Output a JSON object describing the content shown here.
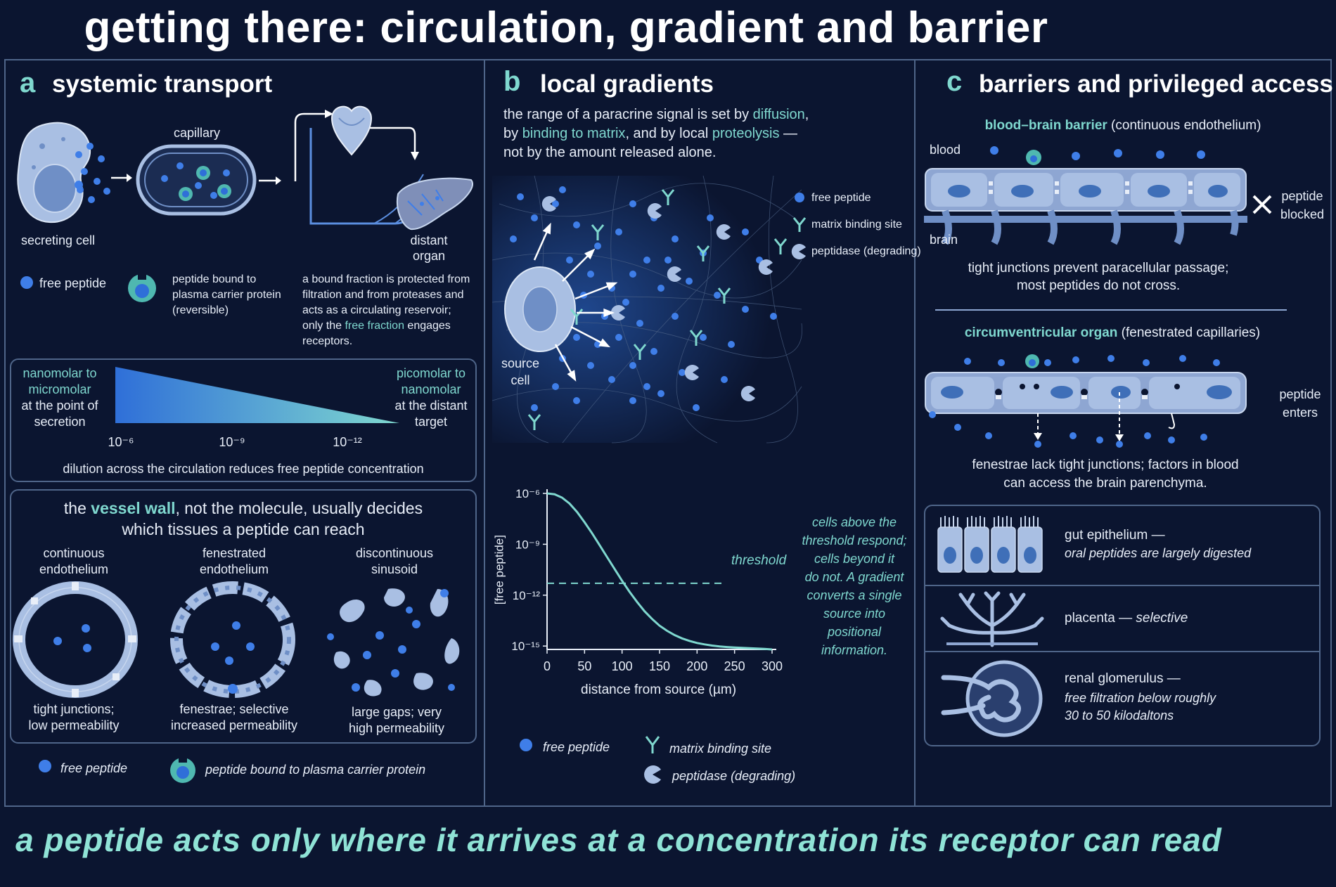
{
  "title": "getting there: circulation, gradient and barrier",
  "footer": "a peptide acts only where it arrives at a concentration its receptor can read",
  "colors": {
    "background": "#0b1530",
    "accent_teal": "#7fd8cf",
    "peptide_blue": "#3f7ee8",
    "cell_fill": "#a9bfe3",
    "panel_border": "#4f6589"
  },
  "panel_a": {
    "letter": "a",
    "heading": "systemic transport",
    "capillary_label": "capillary",
    "secreting_cell_label": "secreting cell",
    "distant_organ_label_1": "distant",
    "distant_organ_label_2": "organ",
    "legend_free_peptide": "free peptide",
    "legend_bound_1": "peptide bound to",
    "legend_bound_2": "plasma carrier protein",
    "legend_bound_3": "(reversible)",
    "bound_note_1": "a bound fraction is protected from",
    "bound_note_2": "filtration and from proteases and",
    "bound_note_3": "acts as a circulating reservoir;",
    "bound_note_4a": "only the ",
    "bound_note_4b": "free fraction",
    "bound_note_4c": " engages",
    "bound_note_5": "receptors.",
    "dilution": {
      "left_1": "nanomolar to",
      "left_2": "micromolar",
      "left_3": "at the point of",
      "left_4": "secretion",
      "right_1": "picomolar to",
      "right_2": "nanomolar",
      "right_3": "at the distant",
      "right_4": "target",
      "tick_1": "10⁻⁶",
      "tick_2": "10⁻⁹",
      "tick_3": "10⁻¹²",
      "caption": "dilution across the circulation reduces free peptide concentration"
    },
    "vessel": {
      "heading_1a": "the ",
      "heading_1b": "vessel wall",
      "heading_1c": ", not the molecule, usually decides",
      "heading_2": "which tissues a peptide can reach",
      "types": [
        {
          "name_1": "continuous",
          "name_2": "endothelium",
          "desc_1": "tight junctions;",
          "desc_2": "low permeability"
        },
        {
          "name_1": "fenestrated",
          "name_2": "endothelium",
          "desc_1": "fenestrae;  selective",
          "desc_2": "increased permeability"
        },
        {
          "name_1": "discontinuous",
          "name_2": "sinusoid",
          "desc_1": "large gaps; very",
          "desc_2": "high permeability"
        }
      ]
    },
    "bottom_legend_free": "free peptide",
    "bottom_legend_bound": "peptide bound to plasma carrier protein"
  },
  "panel_b": {
    "letter": "b",
    "heading": "local gradients",
    "intro_1a": "the range of a paracrine signal is set by ",
    "intro_1b": "diffusion",
    "intro_1c": ",",
    "intro_2a": "by ",
    "intro_2b": "binding to matrix",
    "intro_2c": ", and by local ",
    "intro_2d": "proteolysis",
    "intro_2e": " —",
    "intro_3": "not by the amount released alone.",
    "source_cell_1": "source",
    "source_cell_2": "cell",
    "legend_free": "free peptide",
    "legend_matrix": "matrix binding site",
    "legend_peptidase": "peptidase (degrading)",
    "threshold_label": "threshold",
    "note": [
      "cells above the",
      "threshold respond;",
      "cells beyond it",
      "do not. A gradient",
      "converts a single",
      "source into",
      "positional",
      "information."
    ],
    "bottom_legend_free": "free peptide",
    "bottom_legend_matrix": "matrix binding site",
    "bottom_legend_peptidase": "peptidase (degrading)"
  },
  "chart_data": {
    "type": "line",
    "xlabel": "distance from source (µm)",
    "ylabel": "[free peptide]",
    "x_ticks": [
      "0",
      "50",
      "100",
      "150",
      "200",
      "250",
      "300"
    ],
    "y_ticks": [
      "10⁻⁶",
      "10⁻⁹",
      "10⁻¹²",
      "10⁻¹⁵"
    ],
    "xlim": [
      0,
      300
    ],
    "ylim_log10": [
      -15.2,
      -6
    ],
    "y_scale": "log",
    "threshold_log10": -11.3,
    "series": [
      {
        "x": [
          0,
          10,
          20,
          30,
          40,
          50,
          60,
          70,
          80,
          90,
          100,
          110,
          120,
          130,
          140,
          150,
          160,
          170,
          180,
          190,
          200,
          210,
          220,
          230,
          240,
          250,
          260,
          270,
          280,
          290,
          300
        ],
        "y_log10": [
          -6.0,
          -6.05,
          -6.25,
          -6.6,
          -7.1,
          -7.7,
          -8.35,
          -9.05,
          -9.75,
          -10.45,
          -11.15,
          -11.8,
          -12.4,
          -12.95,
          -13.4,
          -13.8,
          -14.1,
          -14.35,
          -14.55,
          -14.7,
          -14.82,
          -14.9,
          -14.97,
          -15.02,
          -15.06,
          -15.09,
          -15.11,
          -15.13,
          -15.15,
          -15.17,
          -15.2
        ]
      }
    ],
    "grid": false
  },
  "panel_c": {
    "letter": "c",
    "heading": "barriers and privileged access",
    "bbb_title": "blood–brain barrier",
    "bbb_sub": " (continuous endothelium)",
    "blood_label": "blood",
    "brain_label": "brain",
    "blocked_1": "peptide",
    "blocked_2": "blocked",
    "bbb_note_1": "tight junctions prevent paracellular passage;",
    "bbb_note_2": "most peptides do not cross.",
    "cvo_title": "circumventricular organ",
    "cvo_sub": " (fenestrated capillaries)",
    "enters_1": "peptide",
    "enters_2": "enters",
    "cvo_note_1": "fenestrae lack tight junctions; factors in blood",
    "cvo_note_2": "can access the brain parenchyma.",
    "barriers": [
      {
        "name": "gut epithelium —",
        "desc": "oral peptides are largely digested"
      },
      {
        "name": "placenta — ",
        "desc": "selective"
      },
      {
        "name": "renal glomerulus —",
        "desc_1": "free filtration below roughly",
        "desc_2": "30 to 50 kilodaltons"
      }
    ]
  }
}
